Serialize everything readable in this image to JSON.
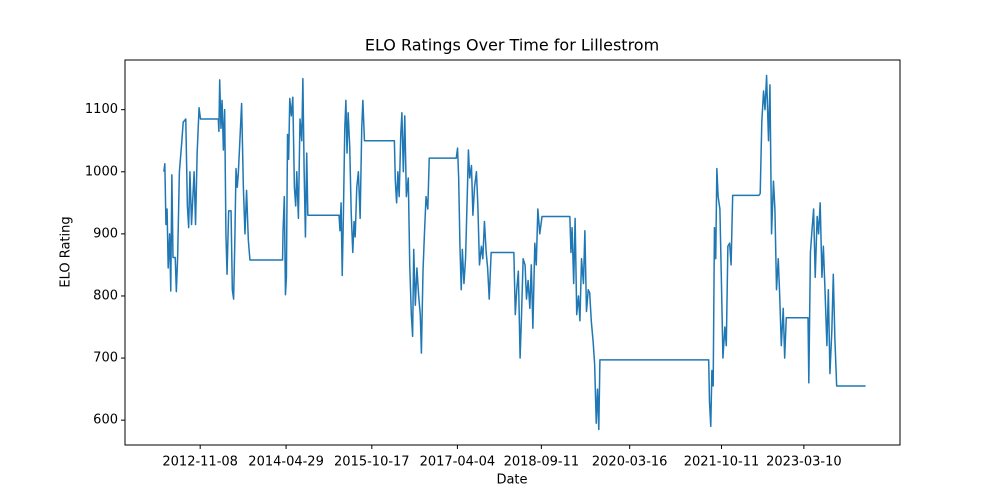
{
  "chart_data": {
    "type": "line",
    "title": "ELO Ratings Over Time for Lillestrom",
    "x_label": "Date",
    "y_label": "ELO Rating",
    "color": "#1f77b4",
    "xlim": [
      "2011-07-27",
      "2024-10-31"
    ],
    "xticks": [
      "2012-11-08",
      "2014-04-29",
      "2015-10-17",
      "2017-04-04",
      "2018-09-11",
      "2020-03-16",
      "2021-10-11",
      "2023-03-10"
    ],
    "ylim": [
      560,
      1180
    ],
    "yticks": [
      600,
      700,
      800,
      900,
      1000,
      1100
    ],
    "x": [
      "2012-03-26",
      "2012-04-01",
      "2012-04-08",
      "2012-04-15",
      "2012-04-22",
      "2012-05-01",
      "2012-05-08",
      "2012-05-15",
      "2012-05-22",
      "2012-06-05",
      "2012-06-12",
      "2012-06-20",
      "2012-07-01",
      "2012-07-15",
      "2012-07-25",
      "2012-08-10",
      "2012-08-20",
      "2012-08-28",
      "2012-09-05",
      "2012-09-15",
      "2012-10-01",
      "2012-10-10",
      "2012-10-20",
      "2012-11-01",
      "2012-11-10",
      "2013-03-01",
      "2013-03-05",
      "2013-03-10",
      "2013-03-18",
      "2013-03-25",
      "2013-04-02",
      "2013-04-10",
      "2013-04-18",
      "2013-04-25",
      "2013-05-05",
      "2013-05-20",
      "2013-05-28",
      "2013-06-05",
      "2013-06-12",
      "2013-06-20",
      "2013-06-28",
      "2013-07-05",
      "2013-07-15",
      "2013-07-25",
      "2013-08-05",
      "2013-08-15",
      "2013-08-25",
      "2013-09-05",
      "2013-09-15",
      "2014-04-07",
      "2014-04-10",
      "2014-04-18",
      "2014-04-25",
      "2014-05-01",
      "2014-05-08",
      "2014-05-15",
      "2014-05-22",
      "2014-06-01",
      "2014-06-10",
      "2014-06-20",
      "2014-06-28",
      "2014-07-05",
      "2014-07-15",
      "2014-07-25",
      "2014-08-05",
      "2014-08-12",
      "2014-08-20",
      "2014-08-28",
      "2014-09-05",
      "2014-09-12",
      "2015-03-26",
      "2015-04-01",
      "2015-04-08",
      "2015-04-15",
      "2015-04-22",
      "2015-05-01",
      "2015-05-08",
      "2015-05-15",
      "2015-05-22",
      "2015-06-01",
      "2015-06-10",
      "2015-06-20",
      "2015-06-28",
      "2015-07-05",
      "2015-07-15",
      "2015-07-25",
      "2015-08-05",
      "2015-08-15",
      "2015-08-22",
      "2015-09-01",
      "2016-03-06",
      "2016-03-12",
      "2016-03-20",
      "2016-03-28",
      "2016-04-05",
      "2016-04-15",
      "2016-04-22",
      "2016-05-01",
      "2016-05-10",
      "2016-05-20",
      "2016-06-01",
      "2016-06-10",
      "2016-06-20",
      "2016-06-28",
      "2016-07-05",
      "2016-07-15",
      "2016-07-25",
      "2016-08-05",
      "2016-08-15",
      "2016-08-22",
      "2016-09-01",
      "2016-09-10",
      "2016-09-20",
      "2016-10-01",
      "2016-10-10",
      "2017-03-28",
      "2017-04-05",
      "2017-04-12",
      "2017-04-20",
      "2017-04-28",
      "2017-05-05",
      "2017-05-15",
      "2017-05-25",
      "2017-06-05",
      "2017-06-12",
      "2017-06-20",
      "2017-07-01",
      "2017-07-10",
      "2017-07-20",
      "2017-08-01",
      "2017-08-10",
      "2017-08-20",
      "2017-09-01",
      "2017-09-10",
      "2017-09-20",
      "2017-10-01",
      "2017-10-10",
      "2017-10-20",
      "2017-11-01",
      "2018-03-23",
      "2018-04-01",
      "2018-04-10",
      "2018-04-20",
      "2018-05-01",
      "2018-05-10",
      "2018-05-20",
      "2018-06-01",
      "2018-06-10",
      "2018-06-20",
      "2018-07-01",
      "2018-07-10",
      "2018-07-20",
      "2018-08-01",
      "2018-08-10",
      "2018-08-20",
      "2018-09-01",
      "2018-09-15",
      "2019-03-08",
      "2019-03-15",
      "2019-03-22",
      "2019-04-01",
      "2019-04-10",
      "2019-04-20",
      "2019-05-01",
      "2019-05-10",
      "2019-05-20",
      "2019-06-01",
      "2019-06-10",
      "2019-06-20",
      "2019-07-01",
      "2019-07-10",
      "2019-07-20",
      "2019-08-01",
      "2019-08-10",
      "2019-08-20",
      "2019-08-28",
      "2019-09-05",
      "2019-09-12",
      "2021-07-23",
      "2021-07-28",
      "2021-08-05",
      "2021-08-12",
      "2021-08-20",
      "2021-08-28",
      "2021-09-05",
      "2021-09-12",
      "2021-09-20",
      "2021-10-01",
      "2021-10-10",
      "2021-10-20",
      "2021-11-01",
      "2021-11-10",
      "2021-11-20",
      "2021-12-01",
      "2021-12-10",
      "2021-12-20",
      "2022-06-02",
      "2022-06-10",
      "2022-06-20",
      "2022-07-01",
      "2022-07-10",
      "2022-07-20",
      "2022-08-01",
      "2022-08-10",
      "2022-08-20",
      "2022-09-01",
      "2022-09-10",
      "2022-09-20",
      "2022-10-01",
      "2022-10-10",
      "2022-10-20",
      "2022-11-01",
      "2022-11-10",
      "2022-11-20",
      "2023-04-05",
      "2023-04-10",
      "2023-04-20",
      "2023-05-01",
      "2023-05-10",
      "2023-05-20",
      "2023-06-01",
      "2023-06-10",
      "2023-06-20",
      "2023-07-01",
      "2023-07-10",
      "2023-07-20",
      "2023-08-01",
      "2023-08-10",
      "2023-08-20",
      "2023-09-01",
      "2023-09-10",
      "2023-09-20",
      "2023-10-01",
      "2024-03-30"
    ],
    "values": [
      1000,
      1013,
      915,
      940,
      845,
      900,
      808,
      995,
      862,
      862,
      807,
      862,
      1000,
      1045,
      1080,
      1085,
      945,
      910,
      1000,
      915,
      1000,
      915,
      1030,
      1103,
      1085,
      1085,
      1065,
      1148,
      1070,
      1115,
      1035,
      1100,
      900,
      835,
      937,
      937,
      810,
      795,
      880,
      1005,
      975,
      1000,
      1055,
      1110,
      975,
      900,
      970,
      890,
      858,
      858,
      905,
      960,
      802,
      830,
      1060,
      1020,
      1118,
      1090,
      1120,
      975,
      945,
      1000,
      925,
      1085,
      1050,
      1150,
      1000,
      895,
      1030,
      930,
      930,
      905,
      950,
      833,
      925,
      1070,
      1115,
      1030,
      1095,
      1040,
      935,
      870,
      920,
      895,
      975,
      1000,
      925,
      1070,
      1115,
      1050,
      1050,
      985,
      950,
      1000,
      960,
      1060,
      1095,
      1000,
      1090,
      960,
      990,
      850,
      770,
      735,
      875,
      785,
      845,
      800,
      770,
      708,
      840,
      900,
      960,
      940,
      1022,
      1022,
      1038,
      990,
      880,
      810,
      875,
      820,
      860,
      965,
      1035,
      990,
      1010,
      930,
      975,
      1000,
      945,
      850,
      880,
      860,
      920,
      870,
      845,
      795,
      870,
      870,
      770,
      810,
      840,
      700,
      770,
      860,
      850,
      795,
      825,
      780,
      850,
      748,
      885,
      850,
      940,
      900,
      928,
      928,
      870,
      910,
      820,
      925,
      770,
      800,
      760,
      860,
      820,
      905,
      775,
      810,
      805,
      760,
      725,
      690,
      595,
      650,
      585,
      697,
      697,
      630,
      590,
      680,
      655,
      910,
      860,
      1005,
      960,
      940,
      830,
      700,
      750,
      720,
      880,
      885,
      850,
      962,
      962,
      965,
      1080,
      1130,
      1100,
      1155,
      1050,
      1140,
      900,
      985,
      940,
      810,
      860,
      800,
      720,
      780,
      700,
      765,
      765,
      660,
      870,
      910,
      940,
      830,
      928,
      900,
      950,
      830,
      880,
      810,
      720,
      810,
      675,
      745,
      835,
      730,
      655,
      655
    ]
  }
}
